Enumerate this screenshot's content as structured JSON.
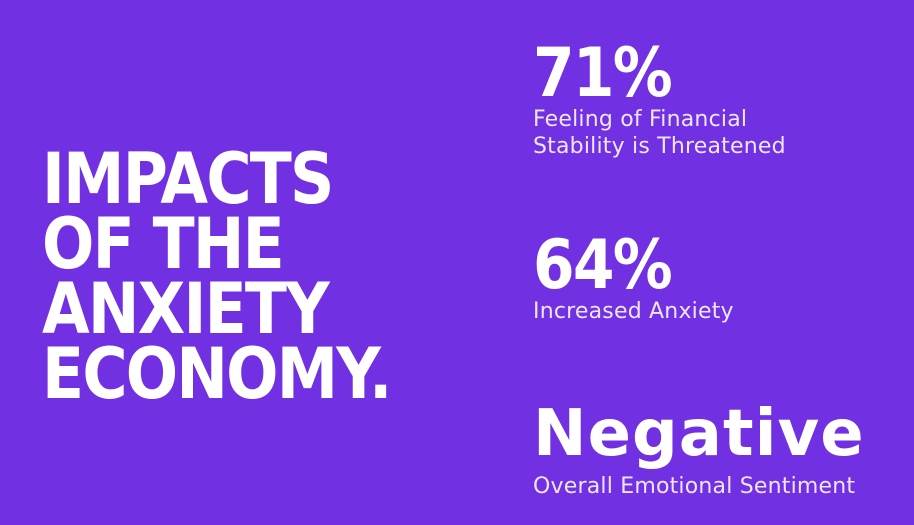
{
  "theme": {
    "background": "#7230E3",
    "headline_color": "#FFFFFF",
    "stat_value_color": "#FFFFFF",
    "stat_label_color": "#EDE6F9"
  },
  "headline": {
    "text": "IMPACTS OF THE ANXIETY ECONOMY.",
    "lines": [
      "IMPACTS",
      "OF THE",
      "ANXIETY",
      "ECONOMY."
    ]
  },
  "stats": [
    {
      "value": "71%",
      "label": "Feeling of Financial Stability is Threatened",
      "label_lines": [
        "Feeling of Financial",
        "Stability is Threatened"
      ]
    },
    {
      "value": "64%",
      "label": "Increased Anxiety",
      "label_lines": [
        "Increased Anxiety"
      ]
    },
    {
      "value": "Negative",
      "label": "Overall Emotional Sentiment",
      "label_lines": [
        "Overall Emotional Sentiment"
      ]
    }
  ]
}
